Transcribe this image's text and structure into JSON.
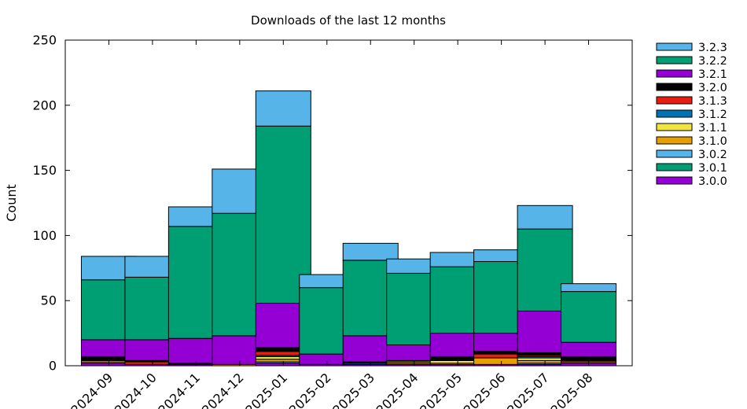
{
  "chart_data": {
    "type": "bar",
    "stacked": true,
    "title": "Downloads of the last 12 months",
    "xlabel": "",
    "ylabel": "Count",
    "ylim": [
      0,
      250
    ],
    "yticks": [
      0,
      50,
      100,
      150,
      200,
      250
    ],
    "grid": false,
    "legend_position": "outside-right",
    "categories": [
      "2024-09",
      "2024-10",
      "2024-11",
      "2024-12",
      "2025-01",
      "2025-02",
      "2025-03",
      "2025-04",
      "2025-05",
      "2025-06",
      "2025-07",
      "2025-08"
    ],
    "series": [
      {
        "name": "3.0.0",
        "color": "#9400d3",
        "values": [
          2,
          1,
          1,
          0,
          2,
          1,
          1,
          1,
          1,
          1,
          1,
          2
        ]
      },
      {
        "name": "3.0.1",
        "color": "#009e73",
        "values": [
          0,
          0,
          0,
          0,
          0,
          0,
          0,
          0,
          0,
          0,
          0,
          0
        ]
      },
      {
        "name": "3.0.2",
        "color": "#56b4e9",
        "values": [
          0,
          0,
          0,
          0,
          1,
          0,
          0,
          0,
          0,
          0,
          1,
          0
        ]
      },
      {
        "name": "3.1.0",
        "color": "#e69f00",
        "values": [
          1,
          0,
          0,
          1,
          2,
          0,
          0,
          1,
          1,
          5,
          2,
          1
        ]
      },
      {
        "name": "3.1.1",
        "color": "#f0e442",
        "values": [
          1,
          0,
          0,
          0,
          2,
          0,
          0,
          1,
          2,
          0,
          2,
          0
        ]
      },
      {
        "name": "3.1.2",
        "color": "#0072b2",
        "values": [
          0,
          0,
          0,
          0,
          1,
          0,
          1,
          1,
          0,
          0,
          1,
          0
        ]
      },
      {
        "name": "3.1.3",
        "color": "#e51e10",
        "values": [
          0,
          2,
          0,
          0,
          3,
          0,
          0,
          0,
          0,
          3,
          1,
          1
        ]
      },
      {
        "name": "3.2.0",
        "color": "#000000",
        "values": [
          3,
          1,
          1,
          0,
          3,
          0,
          1,
          0,
          3,
          2,
          2,
          3
        ]
      },
      {
        "name": "3.2.1",
        "color": "#9400d3",
        "values": [
          13,
          16,
          19,
          22,
          34,
          8,
          20,
          12,
          18,
          14,
          32,
          11
        ]
      },
      {
        "name": "3.2.2",
        "color": "#009e73",
        "values": [
          46,
          48,
          86,
          94,
          136,
          51,
          58,
          55,
          51,
          55,
          63,
          39
        ]
      },
      {
        "name": "3.2.3",
        "color": "#56b4e9",
        "values": [
          18,
          16,
          15,
          34,
          27,
          10,
          13,
          11,
          11,
          9,
          18,
          6
        ]
      }
    ]
  }
}
